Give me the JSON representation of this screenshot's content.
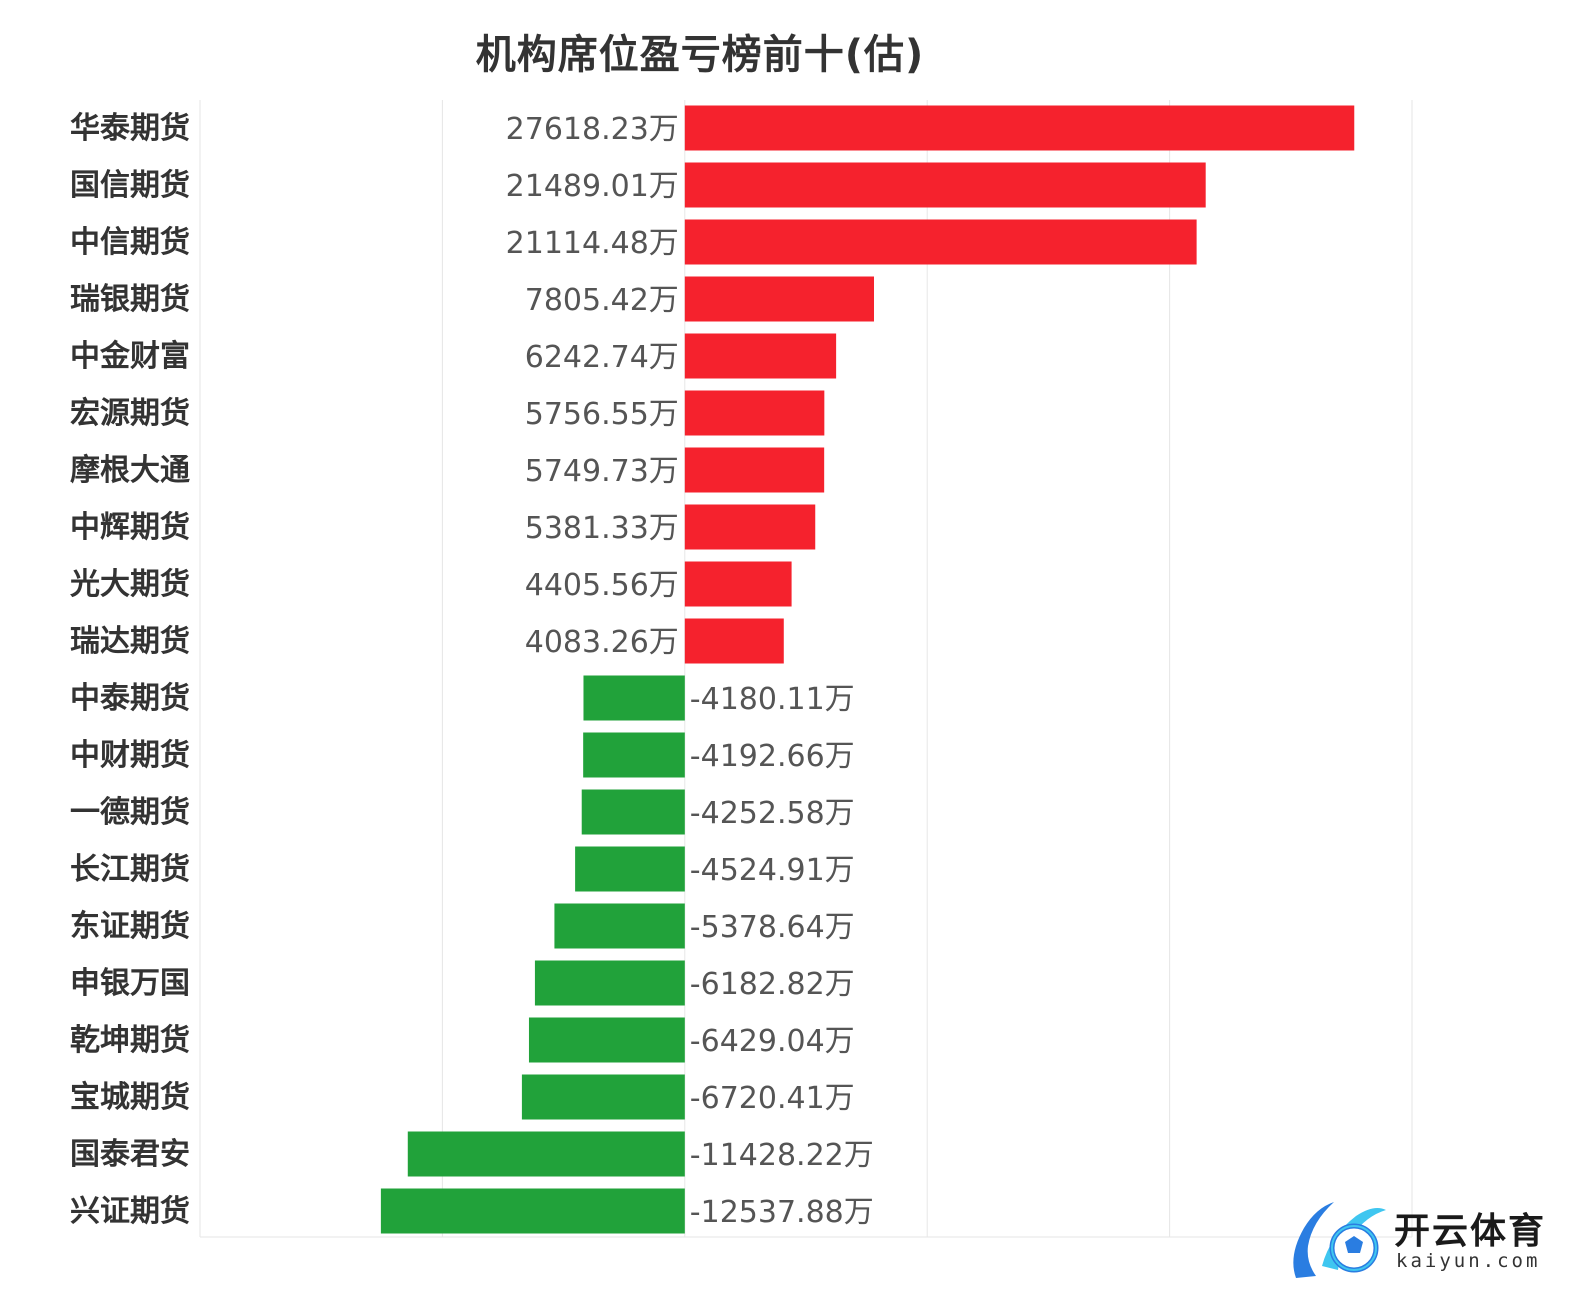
{
  "chart_data": {
    "type": "bar",
    "orientation": "horizontal",
    "title": "机构席位盈亏榜前十(估)",
    "value_suffix": "万",
    "xlim": [
      -20000,
      30000
    ],
    "grid": true,
    "categories": [
      "华泰期货",
      "国信期货",
      "中信期货",
      "瑞银期货",
      "中金财富",
      "宏源期货",
      "摩根大通",
      "中辉期货",
      "光大期货",
      "瑞达期货",
      "中泰期货",
      "中财期货",
      "一德期货",
      "长江期货",
      "东证期货",
      "申银万国",
      "乾坤期货",
      "宝城期货",
      "国泰君安",
      "兴证期货"
    ],
    "values": [
      27618.23,
      21489.01,
      21114.48,
      7805.42,
      6242.74,
      5756.55,
      5749.73,
      5381.33,
      4405.56,
      4083.26,
      -4180.11,
      -4192.66,
      -4252.58,
      -4524.91,
      -5378.64,
      -6182.82,
      -6429.04,
      -6720.41,
      -11428.22,
      -12537.88
    ],
    "value_labels": [
      "27618.23万",
      "21489.01万",
      "21114.48万",
      "7805.42万",
      "6242.74万",
      "5756.55万",
      "5749.73万",
      "5381.33万",
      "4405.56万",
      "4083.26万",
      "-4180.11万",
      "-4192.66万",
      "-4252.58万",
      "-4524.91万",
      "-5378.64万",
      "-6182.82万",
      "-6429.04万",
      "-6720.41万",
      "-11428.22万",
      "-12537.88万"
    ],
    "colors": {
      "positive": "#f5222d",
      "negative": "#21a23a"
    }
  },
  "watermark": {
    "brand": "开云体育",
    "site": "kaiyun.com",
    "colors": {
      "primary": "#2a7de1",
      "accent": "#3fc6f0"
    }
  }
}
